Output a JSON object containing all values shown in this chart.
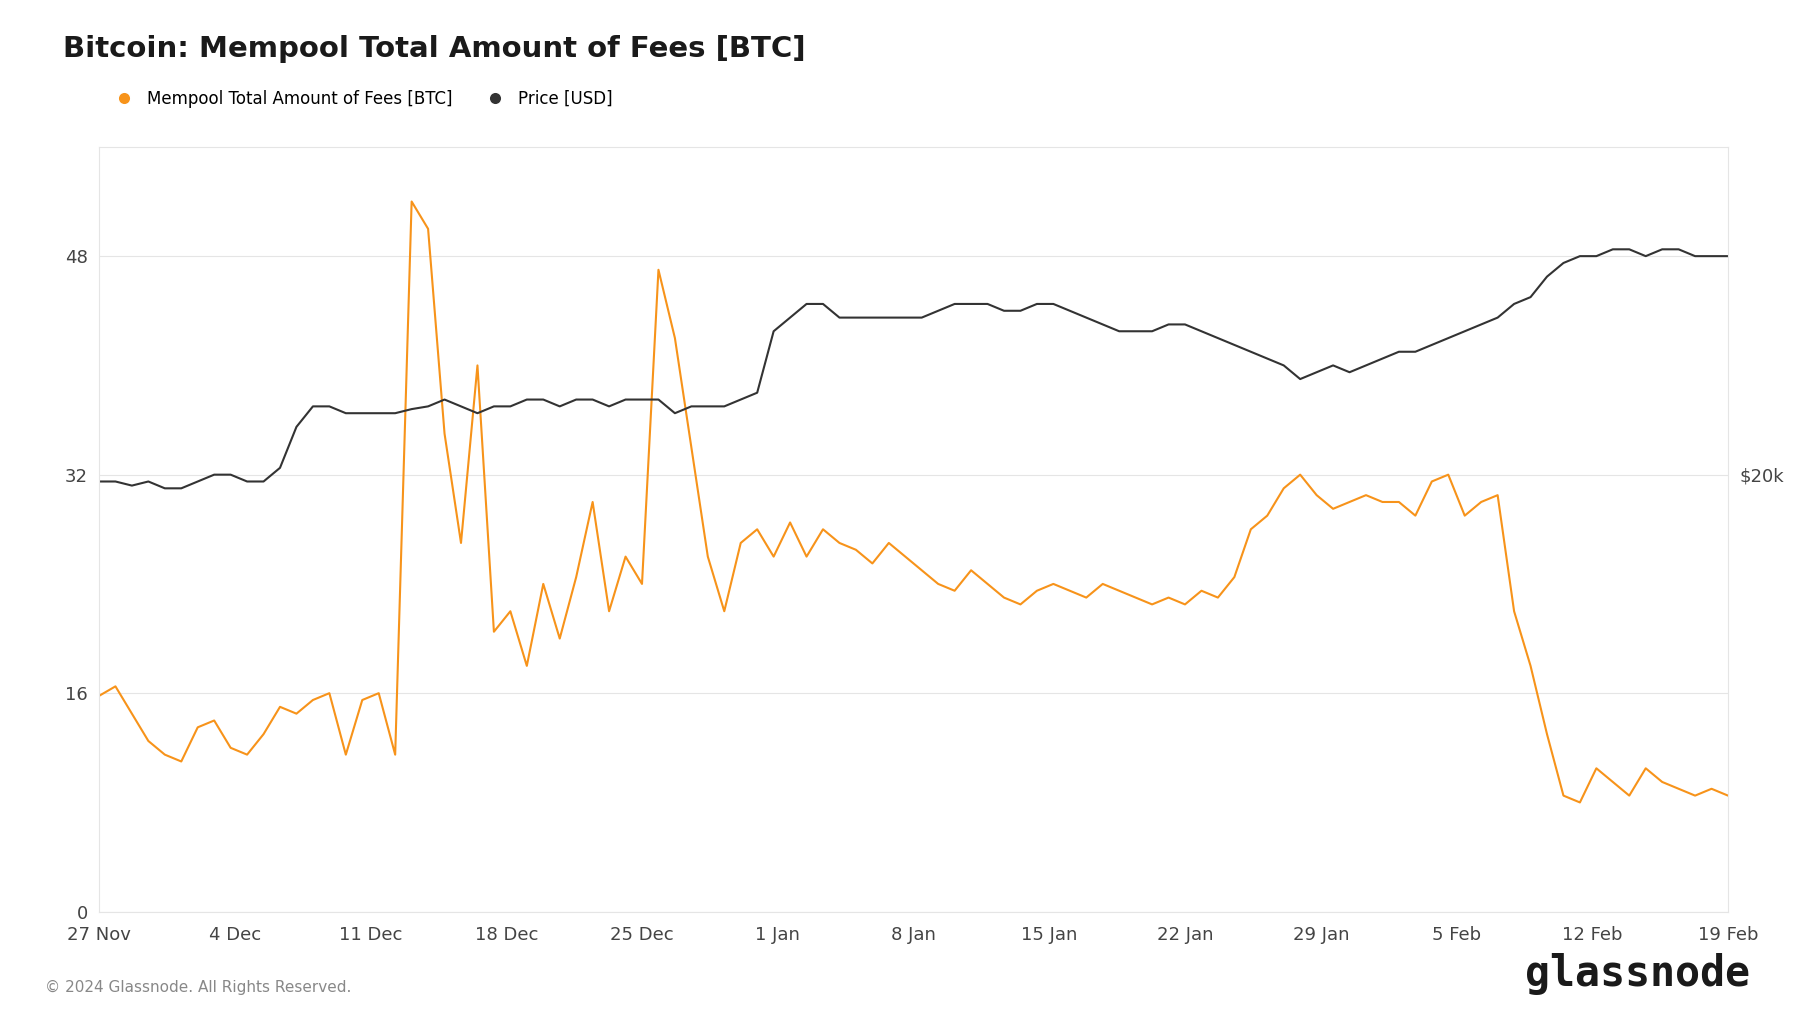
{
  "title": "Bitcoin: Mempool Total Amount of Fees [BTC]",
  "legend_fees": "Mempool Total Amount of Fees [BTC]",
  "legend_price": "Price [USD]",
  "copyright": "© 2024 Glassnode. All Rights Reserved.",
  "watermark": "glassnode",
  "fees_color": "#f7931a",
  "price_color": "#333333",
  "background_color": "#ffffff",
  "grid_color": "#e5e5e5",
  "right_label": "$20k",
  "ylim_fees": [
    0,
    56
  ],
  "yticks_fees": [
    0,
    16,
    32,
    48
  ],
  "xtick_labels": [
    "27 Nov",
    "4 Dec",
    "11 Dec",
    "18 Dec",
    "25 Dec",
    "1 Jan",
    "8 Jan",
    "15 Jan",
    "22 Jan",
    "29 Jan",
    "5 Feb",
    "12 Feb",
    "19 Feb"
  ],
  "fees_data": [
    15.8,
    16.5,
    14.5,
    12.5,
    11.5,
    11.0,
    13.5,
    14.0,
    12.0,
    11.5,
    13.0,
    15.0,
    14.5,
    15.5,
    16.0,
    11.5,
    15.5,
    16.0,
    11.5,
    52.0,
    50.0,
    35.0,
    27.0,
    40.0,
    20.5,
    22.0,
    18.0,
    24.0,
    20.0,
    24.5,
    30.0,
    22.0,
    26.0,
    24.0,
    47.0,
    42.0,
    34.0,
    26.0,
    22.0,
    27.0,
    28.0,
    26.0,
    28.5,
    26.0,
    28.0,
    27.0,
    26.5,
    25.5,
    27.0,
    26.0,
    25.0,
    24.0,
    23.5,
    25.0,
    24.0,
    23.0,
    22.5,
    23.5,
    24.0,
    23.5,
    23.0,
    24.0,
    23.5,
    23.0,
    22.5,
    23.0,
    22.5,
    23.5,
    23.0,
    24.5,
    28.0,
    29.0,
    31.0,
    32.0,
    30.5,
    29.5,
    30.0,
    30.5,
    30.0,
    30.0,
    29.0,
    31.5,
    32.0,
    29.0,
    30.0,
    30.5,
    22.0,
    18.0,
    13.0,
    8.5,
    8.0,
    10.5,
    9.5,
    8.5,
    10.5,
    9.5,
    9.0,
    8.5,
    9.0,
    8.5
  ],
  "price_data_raw": [
    31.5,
    31.5,
    31.2,
    31.5,
    31.0,
    31.0,
    31.5,
    32.0,
    32.0,
    31.5,
    31.5,
    32.5,
    35.5,
    37.0,
    37.0,
    36.5,
    36.5,
    36.5,
    36.5,
    36.8,
    37.0,
    37.5,
    37.0,
    36.5,
    37.0,
    37.0,
    37.5,
    37.5,
    37.0,
    37.5,
    37.5,
    37.0,
    37.5,
    37.5,
    37.5,
    36.5,
    37.0,
    37.0,
    37.0,
    37.5,
    38.0,
    42.5,
    43.5,
    44.5,
    44.5,
    43.5,
    43.5,
    43.5,
    43.5,
    43.5,
    43.5,
    44.0,
    44.5,
    44.5,
    44.5,
    44.0,
    44.0,
    44.5,
    44.5,
    44.0,
    43.5,
    43.0,
    42.5,
    42.5,
    42.5,
    43.0,
    43.0,
    42.5,
    42.0,
    41.5,
    41.0,
    40.5,
    40.0,
    39.0,
    39.5,
    40.0,
    39.5,
    40.0,
    40.5,
    41.0,
    41.0,
    41.5,
    42.0,
    42.5,
    43.0,
    43.5,
    44.5,
    45.0,
    46.5,
    47.5,
    48.0,
    48.0,
    48.5,
    48.5,
    48.0,
    48.5,
    48.5,
    48.0,
    48.0,
    48.0
  ],
  "price_display_min": 20.0,
  "price_display_max": 56.0,
  "price_actual_min": 20.0,
  "price_actual_max": 56.0
}
